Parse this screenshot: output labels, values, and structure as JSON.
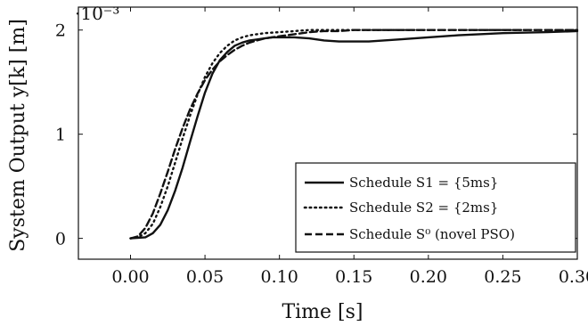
{
  "chart_data": {
    "type": "line",
    "xlabel": "Time [s]",
    "ylabel": "System Output y[k] [m]",
    "y_multiplier": "·10⁻³",
    "xlim": [
      -0.035,
      0.3
    ],
    "ylim": [
      -0.2,
      2.22
    ],
    "x_ticks": [
      0.0,
      0.05,
      0.1,
      0.15,
      0.2,
      0.25,
      0.3
    ],
    "x_tick_labels": [
      "0.00",
      "0.05",
      "0.10",
      "0.15",
      "0.20",
      "0.25",
      "0.30"
    ],
    "y_ticks": [
      0,
      1,
      2
    ],
    "y_tick_labels": [
      "0",
      "1",
      "2"
    ],
    "grid": false,
    "legend_position": "bottom-right",
    "colors": {
      "series": "#111111"
    },
    "series": [
      {
        "name": "Schedule S1 = {5ms}",
        "style": "solid",
        "x": [
          0.0,
          0.01,
          0.015,
          0.02,
          0.025,
          0.03,
          0.035,
          0.04,
          0.045,
          0.05,
          0.055,
          0.06,
          0.065,
          0.07,
          0.075,
          0.08,
          0.085,
          0.09,
          0.095,
          0.1,
          0.11,
          0.12,
          0.13,
          0.14,
          0.15,
          0.16,
          0.18,
          0.2,
          0.22,
          0.25,
          0.28,
          0.3
        ],
        "y": [
          0.0,
          0.01,
          0.05,
          0.13,
          0.27,
          0.46,
          0.68,
          0.93,
          1.17,
          1.4,
          1.58,
          1.71,
          1.79,
          1.85,
          1.88,
          1.9,
          1.91,
          1.92,
          1.93,
          1.93,
          1.93,
          1.92,
          1.9,
          1.89,
          1.89,
          1.89,
          1.91,
          1.93,
          1.95,
          1.97,
          1.98,
          1.99
        ]
      },
      {
        "name": "Schedule S2 = {2ms}",
        "style": "dotted",
        "x": [
          0.0,
          0.005,
          0.01,
          0.015,
          0.02,
          0.025,
          0.03,
          0.035,
          0.04,
          0.045,
          0.05,
          0.055,
          0.06,
          0.065,
          0.07,
          0.075,
          0.08,
          0.085,
          0.09,
          0.1,
          0.11,
          0.12,
          0.14,
          0.16,
          0.2,
          0.25,
          0.3
        ],
        "y": [
          0.0,
          0.01,
          0.05,
          0.14,
          0.3,
          0.5,
          0.73,
          0.96,
          1.18,
          1.38,
          1.55,
          1.68,
          1.78,
          1.85,
          1.9,
          1.93,
          1.95,
          1.96,
          1.97,
          1.98,
          1.99,
          2.0,
          2.0,
          2.0,
          2.0,
          2.0,
          2.0
        ]
      },
      {
        "name": "Schedule S⁰ (novel PSO)",
        "style": "dashed",
        "x": [
          0.0,
          0.005,
          0.01,
          0.015,
          0.02,
          0.025,
          0.03,
          0.035,
          0.04,
          0.045,
          0.05,
          0.055,
          0.06,
          0.065,
          0.07,
          0.075,
          0.08,
          0.085,
          0.09,
          0.095,
          0.1,
          0.11,
          0.12,
          0.13,
          0.14,
          0.15,
          0.17,
          0.2,
          0.25,
          0.3
        ],
        "y": [
          0.0,
          0.02,
          0.1,
          0.24,
          0.43,
          0.64,
          0.86,
          1.06,
          1.24,
          1.39,
          1.52,
          1.62,
          1.7,
          1.76,
          1.81,
          1.85,
          1.88,
          1.9,
          1.92,
          1.93,
          1.94,
          1.96,
          1.98,
          1.99,
          1.99,
          2.0,
          2.0,
          2.0,
          2.0,
          2.0
        ]
      }
    ]
  }
}
